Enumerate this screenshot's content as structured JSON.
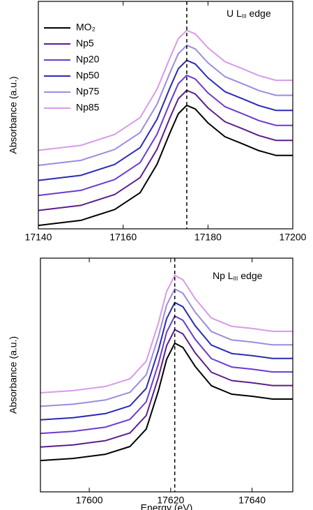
{
  "chart_data": [
    {
      "type": "line",
      "ylabel": "Absorbance (a.u.)",
      "annotation": {
        "text": "U L",
        "subscript": "III",
        "suffix": "edge"
      },
      "x": [
        17140,
        17150,
        17158,
        17164,
        17168,
        17171,
        17173,
        17175,
        17177,
        17180,
        17184,
        17188,
        17192,
        17196,
        17200
      ],
      "xlim": [
        17140,
        17200
      ],
      "xticks": [
        17140,
        17160,
        17180,
        17200
      ],
      "ylim": [
        0,
        10
      ],
      "vline": 17175,
      "legend": "upper left",
      "series": [
        {
          "name": "MO₂",
          "color": "#000000",
          "values": [
            0.15,
            0.37,
            0.85,
            1.59,
            2.84,
            4.21,
            5.06,
            5.43,
            5.27,
            4.66,
            4.05,
            3.75,
            3.44,
            3.23,
            3.23
          ]
        },
        {
          "name": "Np5",
          "color": "#5a1e8c",
          "values": [
            0.81,
            1.03,
            1.51,
            2.25,
            3.5,
            4.87,
            5.72,
            6.09,
            5.93,
            5.32,
            4.71,
            4.41,
            4.1,
            3.89,
            3.89
          ]
        },
        {
          "name": "Np20",
          "color": "#6a3bd0",
          "values": [
            1.47,
            1.69,
            2.17,
            2.91,
            4.16,
            5.53,
            6.38,
            6.75,
            6.59,
            5.98,
            5.37,
            5.07,
            4.76,
            4.55,
            4.55
          ]
        },
        {
          "name": "Np50",
          "color": "#2a2ab8",
          "values": [
            2.13,
            2.35,
            2.83,
            3.57,
            4.82,
            6.19,
            7.04,
            7.41,
            7.25,
            6.64,
            6.03,
            5.73,
            5.42,
            5.21,
            5.21
          ]
        },
        {
          "name": "Np75",
          "color": "#9a8ce0",
          "values": [
            2.79,
            3.01,
            3.49,
            4.23,
            5.48,
            6.85,
            7.7,
            8.07,
            7.91,
            7.3,
            6.69,
            6.39,
            6.08,
            5.87,
            5.87
          ]
        },
        {
          "name": "Np85",
          "color": "#d89ae8",
          "values": [
            3.45,
            3.67,
            4.15,
            4.89,
            6.14,
            7.51,
            8.36,
            8.73,
            8.57,
            7.96,
            7.35,
            7.05,
            6.74,
            6.53,
            6.53
          ]
        }
      ]
    },
    {
      "type": "line",
      "ylabel": "Absorbance (a.u.)",
      "xlabel": "Energy (eV)",
      "annotation": {
        "text": "Np L",
        "subscript": "III",
        "suffix": "edge"
      },
      "x": [
        17588,
        17596,
        17604,
        17610,
        17614,
        17617,
        17619,
        17621,
        17623,
        17626,
        17630,
        17635,
        17640,
        17645,
        17650
      ],
      "xlim": [
        17588,
        17650
      ],
      "xticks": [
        17600,
        17620,
        17640
      ],
      "ylim": [
        0,
        10
      ],
      "vline": 17621,
      "series": [
        {
          "color": "#000000",
          "values": [
            1.34,
            1.43,
            1.61,
            1.94,
            2.69,
            4.33,
            5.67,
            6.36,
            6.18,
            5.37,
            4.54,
            4.18,
            4.09,
            3.97,
            3.97
          ]
        },
        {
          "color": "#5a1e8c",
          "values": [
            1.92,
            2.01,
            2.19,
            2.52,
            3.27,
            4.91,
            6.25,
            6.94,
            6.76,
            5.95,
            5.12,
            4.76,
            4.67,
            4.55,
            4.55
          ]
        },
        {
          "color": "#6a3bd0",
          "values": [
            2.5,
            2.59,
            2.77,
            3.1,
            3.85,
            5.49,
            6.83,
            7.52,
            7.34,
            6.53,
            5.7,
            5.34,
            5.25,
            5.13,
            5.13
          ]
        },
        {
          "color": "#2a2ab8",
          "values": [
            3.08,
            3.17,
            3.35,
            3.68,
            4.43,
            6.07,
            7.41,
            8.1,
            7.92,
            7.11,
            6.28,
            5.92,
            5.83,
            5.71,
            5.71
          ]
        },
        {
          "color": "#9a8ce0",
          "values": [
            3.66,
            3.75,
            3.93,
            4.26,
            5.01,
            6.65,
            7.99,
            8.68,
            8.5,
            7.69,
            6.86,
            6.5,
            6.41,
            6.29,
            6.29
          ]
        },
        {
          "color": "#d89ae8",
          "values": [
            4.24,
            4.33,
            4.51,
            4.84,
            5.59,
            7.23,
            8.57,
            9.26,
            9.08,
            8.27,
            7.44,
            7.08,
            6.99,
            6.87,
            6.87
          ]
        }
      ]
    }
  ]
}
